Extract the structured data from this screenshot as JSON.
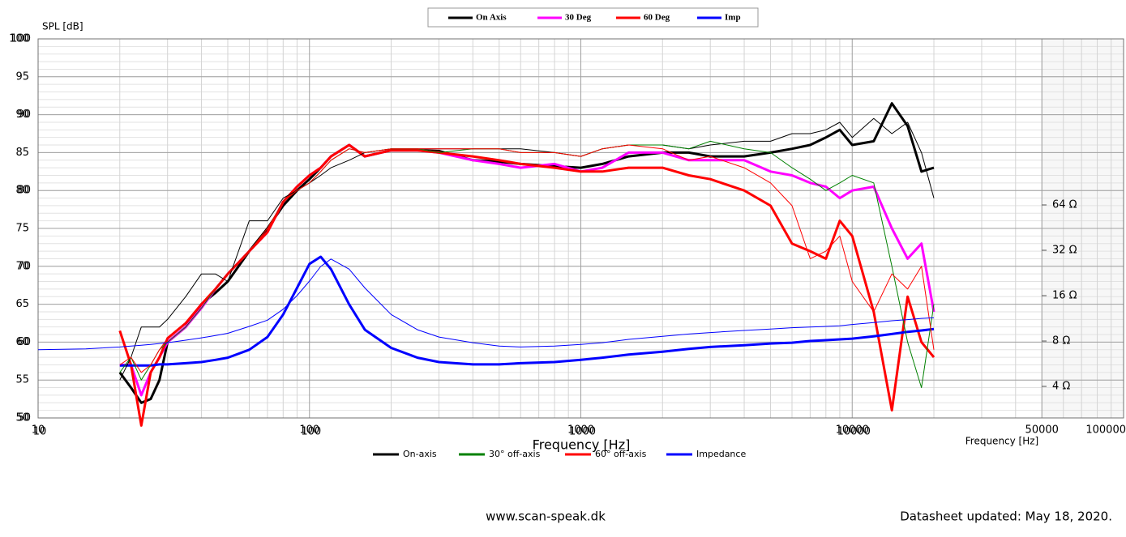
{
  "chart_data": [
    {
      "type": "line",
      "legend_position": "top",
      "line_width": 3,
      "grid": true,
      "xscale": "log",
      "y2scale": "log",
      "y_label": "SPL [dB]",
      "x_label": "Frequency [Hz]",
      "xlim": [
        10,
        100000
      ],
      "xticks": [
        10,
        100,
        1000,
        10000,
        50000,
        100000
      ],
      "ylim": [
        50,
        100
      ],
      "yticks": [
        50,
        55,
        60,
        65,
        70,
        75,
        80,
        85,
        90,
        95,
        100
      ],
      "y2lim": [
        2.47,
        809
      ],
      "y2ticks": [
        {
          "value": 4,
          "label": "4 Ω"
        },
        {
          "value": 8,
          "label": "8 Ω"
        },
        {
          "value": 16,
          "label": "16 Ω"
        },
        {
          "value": 32,
          "label": "32 Ω"
        },
        {
          "value": 64,
          "label": "64 Ω"
        }
      ],
      "x": [
        10,
        15,
        20,
        22,
        24,
        26,
        28,
        30,
        35,
        40,
        45,
        50,
        60,
        70,
        80,
        90,
        100,
        110,
        120,
        140,
        160,
        200,
        250,
        300,
        400,
        500,
        600,
        800,
        1000,
        1200,
        1500,
        2000,
        2500,
        3000,
        4000,
        5000,
        6000,
        7000,
        8000,
        9000,
        10000,
        12000,
        14000,
        16000,
        18000,
        20000
      ],
      "series": [
        {
          "name": "On Axis",
          "color": "#000000",
          "values": [
            null,
            null,
            56,
            54,
            52,
            52.5,
            55,
            60,
            62,
            65,
            66.5,
            68,
            72,
            75,
            78,
            80,
            81.5,
            83,
            84.5,
            86,
            84.5,
            85.3,
            85.3,
            85.2,
            84,
            83.8,
            83.5,
            83.2,
            83,
            83.5,
            84.5,
            85,
            85,
            84.5,
            84.5,
            85,
            85.5,
            86,
            87,
            88,
            86,
            86.5,
            91.5,
            88.5,
            82.5,
            83
          ]
        },
        {
          "name": "30 Deg",
          "color": "#ff00ff",
          "values": [
            null,
            null,
            57,
            57,
            53,
            56,
            58,
            60,
            62,
            64.5,
            67,
            69,
            72,
            74.5,
            78.5,
            80.5,
            82,
            83,
            84.5,
            86,
            84.5,
            85.3,
            85.3,
            85,
            84,
            83.5,
            83,
            83.5,
            82.5,
            83,
            85,
            85,
            84,
            84,
            84,
            82.5,
            82,
            81,
            80.5,
            79,
            80,
            80.5,
            75,
            71,
            73,
            64
          ]
        },
        {
          "name": "60 Deg",
          "color": "#ff0000",
          "values": [
            null,
            null,
            61.5,
            57,
            49,
            56,
            58,
            60.5,
            62.5,
            65,
            67,
            69,
            72,
            74.5,
            78.5,
            80.5,
            82,
            83,
            84.5,
            86,
            84.5,
            85.3,
            85.3,
            85,
            84.5,
            84,
            83.5,
            83,
            82.5,
            82.5,
            83,
            83,
            82,
            81.5,
            80,
            78,
            73,
            72,
            71,
            76,
            74,
            64,
            51,
            66,
            60,
            58
          ]
        },
        {
          "name": "Imp",
          "color": "#0000ff",
          "axis": "y2",
          "values": [
            null,
            null,
            5.5,
            5.5,
            5.5,
            5.5,
            5.6,
            5.6,
            5.7,
            5.8,
            6.0,
            6.2,
            7.0,
            8.5,
            12,
            18,
            26,
            29,
            24,
            14,
            9.5,
            7.2,
            6.2,
            5.8,
            5.6,
            5.6,
            5.7,
            5.8,
            6.0,
            6.2,
            6.5,
            6.8,
            7.1,
            7.3,
            7.5,
            7.7,
            7.8,
            8.0,
            8.1,
            8.2,
            8.3,
            8.6,
            8.9,
            9.2,
            9.4,
            9.6
          ]
        }
      ]
    },
    {
      "type": "line",
      "legend_position": "bottom",
      "line_width": 1,
      "grid": false,
      "xscale": "log",
      "y2scale": "log",
      "x_label": "Frequency [Hz]",
      "xlim": [
        10,
        100000
      ],
      "xticks": [
        10,
        100,
        1000,
        10000
      ],
      "ylim": [
        50,
        100
      ],
      "yticks": [
        50,
        60,
        70,
        80,
        90,
        100
      ],
      "y2lim": [
        2.47,
        809
      ],
      "x": [
        10,
        15,
        20,
        22,
        24,
        26,
        28,
        30,
        35,
        40,
        45,
        50,
        60,
        70,
        80,
        90,
        100,
        110,
        120,
        140,
        160,
        200,
        250,
        300,
        400,
        500,
        600,
        800,
        1000,
        1200,
        1500,
        2000,
        2500,
        3000,
        4000,
        5000,
        6000,
        7000,
        8000,
        9000,
        10000,
        12000,
        14000,
        16000,
        18000,
        20000
      ],
      "series": [
        {
          "name": "On-axis",
          "color": "#000000",
          "values": [
            null,
            null,
            55,
            58,
            62,
            62,
            62,
            63,
            66,
            69,
            69,
            68,
            76,
            76,
            79,
            80,
            81,
            82,
            83,
            84,
            85,
            85.5,
            85.5,
            85.5,
            85.5,
            85.5,
            85.5,
            85,
            84.5,
            85.5,
            86,
            86,
            85.5,
            86,
            86.5,
            86.5,
            87.5,
            87.5,
            88,
            89,
            87,
            89.5,
            87.5,
            89,
            85,
            79
          ]
        },
        {
          "name": "30° off-axis",
          "color": "#008000",
          "values": [
            null,
            null,
            56,
            58,
            55,
            57,
            59,
            60,
            62,
            64.5,
            67,
            69,
            72,
            75,
            78.5,
            80,
            81,
            82.5,
            84,
            85.5,
            85,
            85.5,
            85.5,
            85,
            85.5,
            85.5,
            85,
            85,
            84.5,
            85.5,
            86,
            86,
            85.5,
            86.5,
            85.5,
            85,
            83,
            81.5,
            80,
            81,
            82,
            81,
            70,
            60,
            54,
            65
          ]
        },
        {
          "name": "60° off-axis",
          "color": "#ff0000",
          "values": [
            null,
            null,
            57,
            58,
            56,
            57,
            59,
            60.5,
            62.5,
            65,
            67,
            69,
            72,
            75,
            78.5,
            80,
            81,
            82.5,
            84,
            85.5,
            85,
            85.5,
            85.5,
            85.5,
            85.5,
            85.5,
            85,
            85,
            84.5,
            85.5,
            86,
            85.5,
            84,
            84.5,
            83,
            81,
            78,
            71,
            72,
            74,
            68,
            64,
            69,
            67,
            70,
            59
          ]
        },
        {
          "name": "Impedance",
          "color": "#0000ff",
          "axis": "y2",
          "values": [
            7.0,
            7.1,
            7.3,
            7.4,
            7.5,
            7.6,
            7.7,
            7.8,
            8.1,
            8.4,
            8.7,
            9.0,
            10,
            11,
            13,
            16,
            20,
            25,
            28,
            24,
            18,
            12,
            9.5,
            8.5,
            7.8,
            7.4,
            7.3,
            7.4,
            7.6,
            7.8,
            8.2,
            8.6,
            8.9,
            9.1,
            9.4,
            9.6,
            9.8,
            9.9,
            10,
            10.1,
            10.3,
            10.6,
            10.9,
            11.1,
            11.3,
            11.4
          ]
        }
      ]
    }
  ],
  "footer": {
    "website": "www.scan-speak.dk",
    "updated": "Datasheet updated: May 18, 2020."
  }
}
